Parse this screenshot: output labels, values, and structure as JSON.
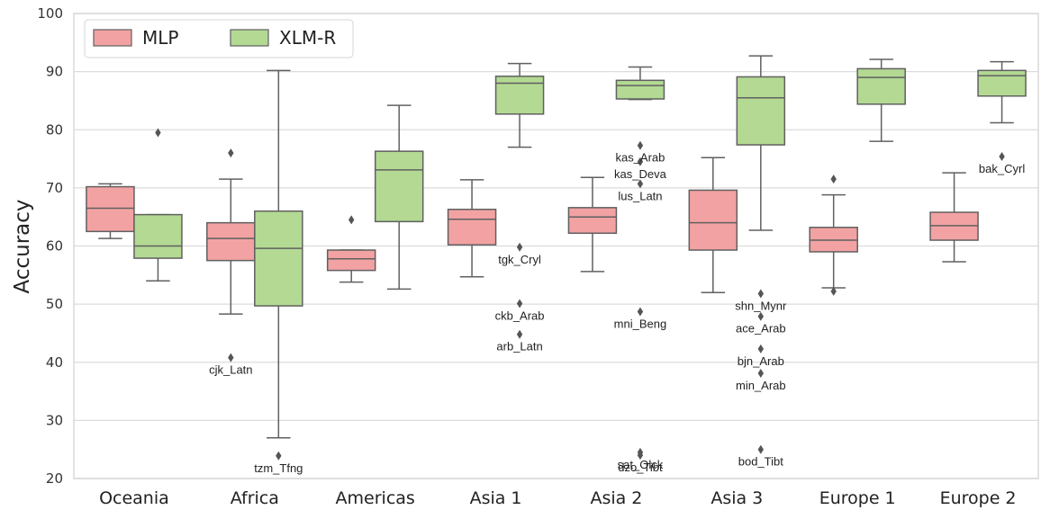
{
  "chart_data": {
    "type": "box",
    "ylabel": "Accuracy",
    "ylim": [
      20,
      100
    ],
    "yticks": [
      20,
      30,
      40,
      50,
      60,
      70,
      80,
      90,
      100
    ],
    "grid": true,
    "legend_position": "top-left",
    "categories": [
      "Oceania",
      "Africa",
      "Americas",
      "Asia 1",
      "Asia 2",
      "Asia 3",
      "Europe 1",
      "Europe 2"
    ],
    "series": [
      {
        "name": "MLP",
        "color": "#f2a2a3",
        "boxes": [
          {
            "whislo": 61.3,
            "q1": 62.5,
            "med": 66.5,
            "q3": 70.2,
            "whishi": 70.7,
            "fliers": []
          },
          {
            "whislo": 48.3,
            "q1": 57.5,
            "med": 61.3,
            "q3": 64.0,
            "whishi": 71.5,
            "fliers": [
              76.0,
              40.8
            ]
          },
          {
            "whislo": 53.8,
            "q1": 55.8,
            "med": 57.8,
            "q3": 59.3,
            "whishi": 59.3,
            "fliers": [
              64.5
            ]
          },
          {
            "whislo": 54.7,
            "q1": 60.2,
            "med": 64.6,
            "q3": 66.3,
            "whishi": 71.4,
            "fliers": []
          },
          {
            "whislo": 55.6,
            "q1": 62.2,
            "med": 65.0,
            "q3": 66.6,
            "whishi": 71.8,
            "fliers": []
          },
          {
            "whislo": 52.0,
            "q1": 59.3,
            "med": 64.0,
            "q3": 69.6,
            "whishi": 75.2,
            "fliers": []
          },
          {
            "whislo": 52.8,
            "q1": 59.0,
            "med": 61.0,
            "q3": 63.2,
            "whishi": 68.8,
            "fliers": [
              71.5,
              52.2
            ]
          },
          {
            "whislo": 57.3,
            "q1": 61.0,
            "med": 63.5,
            "q3": 65.8,
            "whishi": 72.6,
            "fliers": []
          }
        ]
      },
      {
        "name": "XLM-R",
        "color": "#b3d993",
        "boxes": [
          {
            "whislo": 54.0,
            "q1": 57.9,
            "med": 60.0,
            "q3": 65.4,
            "whishi": 65.4,
            "fliers": [
              79.5
            ]
          },
          {
            "whislo": 27.0,
            "q1": 49.7,
            "med": 59.6,
            "q3": 66.0,
            "whishi": 90.2,
            "fliers": [
              23.9
            ]
          },
          {
            "whislo": 52.6,
            "q1": 64.2,
            "med": 73.1,
            "q3": 76.3,
            "whishi": 84.2,
            "fliers": []
          },
          {
            "whislo": 77.0,
            "q1": 82.7,
            "med": 88.0,
            "q3": 89.2,
            "whishi": 91.4,
            "fliers": [
              59.8,
              50.1,
              44.8
            ]
          },
          {
            "whislo": 85.2,
            "q1": 85.3,
            "med": 87.6,
            "q3": 88.5,
            "whishi": 90.8,
            "fliers": [
              77.3,
              74.5,
              70.7,
              48.7,
              24.5,
              24.0
            ]
          },
          {
            "whislo": 62.7,
            "q1": 77.4,
            "med": 85.5,
            "q3": 89.1,
            "whishi": 92.7,
            "fliers": [
              51.8,
              47.9,
              42.3,
              38.1,
              25.0
            ]
          },
          {
            "whislo": 78.0,
            "q1": 84.4,
            "med": 89.0,
            "q3": 90.5,
            "whishi": 92.1,
            "fliers": []
          },
          {
            "whislo": 81.2,
            "q1": 85.8,
            "med": 89.3,
            "q3": 90.2,
            "whishi": 91.7,
            "fliers": [
              75.4
            ]
          }
        ]
      }
    ],
    "annotations": [
      {
        "text": "cjk_Latn",
        "category": 1,
        "series": 0,
        "y": 40.8
      },
      {
        "text": "tzm_Tfng",
        "category": 1,
        "series": 1,
        "y": 23.9
      },
      {
        "text": "tgk_Cryl",
        "category": 3,
        "series": 1,
        "y": 59.8
      },
      {
        "text": "ckb_Arab",
        "category": 3,
        "series": 1,
        "y": 50.1
      },
      {
        "text": "arb_Latn",
        "category": 3,
        "series": 1,
        "y": 44.8
      },
      {
        "text": "kas_Arab",
        "category": 4,
        "series": 1,
        "y": 77.3
      },
      {
        "text": "kas_Deva",
        "category": 4,
        "series": 1,
        "y": 74.5
      },
      {
        "text": "lus_Latn",
        "category": 4,
        "series": 1,
        "y": 70.7
      },
      {
        "text": "mni_Beng",
        "category": 4,
        "series": 1,
        "y": 48.7
      },
      {
        "text": "sat_Olck",
        "category": 4,
        "series": 1,
        "y": 24.5
      },
      {
        "text": "dzo_Tibt",
        "category": 4,
        "series": 1,
        "y": 24.0
      },
      {
        "text": "shn_Mynr",
        "category": 5,
        "series": 1,
        "y": 51.8
      },
      {
        "text": "ace_Arab",
        "category": 5,
        "series": 1,
        "y": 47.9
      },
      {
        "text": "bjn_Arab",
        "category": 5,
        "series": 1,
        "y": 42.3
      },
      {
        "text": "min_Arab",
        "category": 5,
        "series": 1,
        "y": 38.1
      },
      {
        "text": "bod_Tibt",
        "category": 5,
        "series": 1,
        "y": 25.0
      },
      {
        "text": "bak_Cyrl",
        "category": 7,
        "series": 1,
        "y": 75.4
      }
    ]
  }
}
